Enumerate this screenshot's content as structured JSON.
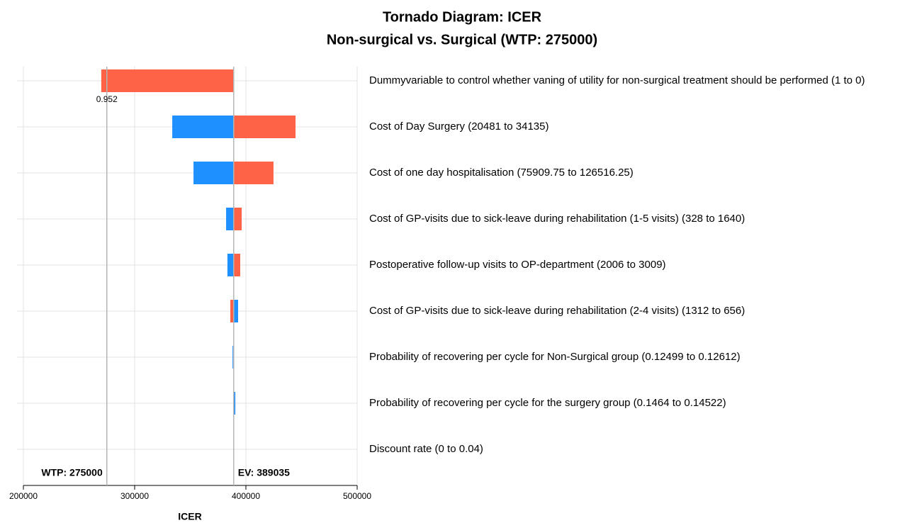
{
  "chart_data": {
    "type": "tornado",
    "title": "Tornado Diagram: ICER",
    "subtitle": "Non-surgical vs. Surgical (WTP: 275000)",
    "xlabel": "ICER",
    "categories": [
      "Dummyvariable to control whether vaning of utility for non-surgical treatment should be performed (1 to 0)",
      "Cost of Day Surgery (20481 to 34135)",
      "Cost of one day hospitalisation (75909.75 to 126516.25)",
      "Cost of GP-visits due to sick-leave during rehabilitation (1-5 visits) (328 to 1640)",
      "Postoperative follow-up visits to OP-department (2006 to 3009)",
      "Cost of GP-visits due to sick-leave during rehabilitation (2-4 visits) (1312 to 656)",
      "Probability of recovering per cycle for Non-Surgical group (0.12499 to 0.12612)",
      "Probability of recovering per cycle for the surgery group (0.1464 to 0.14522)",
      "Discount rate (0 to 0.04)"
    ],
    "series": [
      {
        "color": "#1e90ff",
        "values": [
          389035,
          333800,
          352900,
          382200,
          383400,
          393000,
          388000,
          390500,
          389035
        ]
      },
      {
        "color": "#ff6347",
        "values": [
          270000,
          444600,
          424800,
          396200,
          394900,
          386000,
          389500,
          389035,
          389035
        ]
      }
    ],
    "base": 389035,
    "reference_lines": [
      {
        "label": "WTP: 275000",
        "value": 275000
      },
      {
        "label": "EV: 389035",
        "value": 389035
      }
    ],
    "annotation": "0.952",
    "xlim": [
      200000,
      500000
    ],
    "xticks": [
      200000,
      300000,
      400000,
      500000
    ],
    "grid": true
  }
}
